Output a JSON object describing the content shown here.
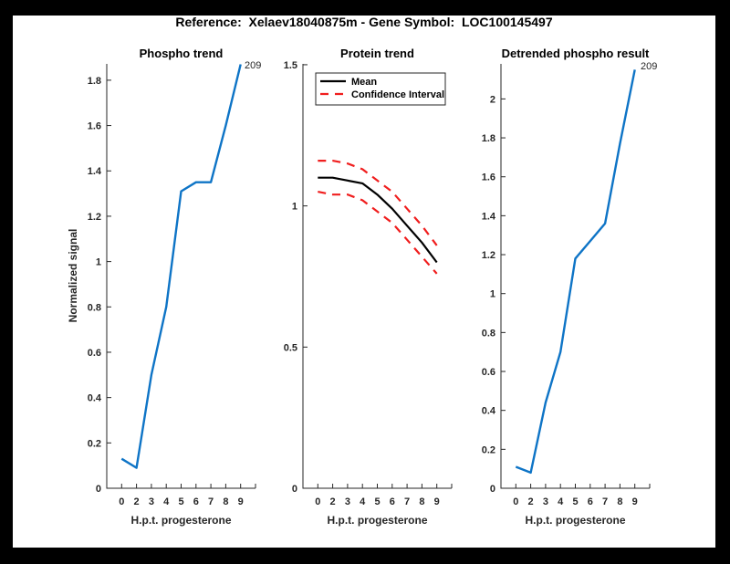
{
  "header": {
    "title": "Reference:  Xelaev18040875m - Gene Symbol:  LOC100145497"
  },
  "colors": {
    "background": "#ffffff",
    "frame": "#000000",
    "axis": "#262626",
    "blue": "#0e74c6",
    "red": "#f01e1e",
    "black": "#000000"
  },
  "x_axis": {
    "label": "H.p.t. progesterone",
    "tick_labels": [
      "0",
      "2",
      "3",
      "4",
      "5",
      "6",
      "7",
      "8",
      "9",
      ""
    ]
  },
  "chart_data": [
    {
      "id": "phospho-trend",
      "type": "line",
      "title": "Phospho trend",
      "ylabel": "Normalized signal",
      "xlabel": "H.p.t. progesterone",
      "categories": [
        0,
        2,
        3,
        4,
        5,
        6,
        7,
        8,
        9
      ],
      "series": [
        {
          "name": "Phospho signal",
          "color_key": "blue",
          "style": "solid",
          "width": 2.4,
          "values": [
            0.13,
            0.09,
            0.5,
            0.8,
            1.31,
            1.35,
            1.35,
            1.6,
            1.87
          ]
        }
      ],
      "annotation": {
        "text": "209"
      },
      "yticks": [
        0,
        0.2,
        0.4,
        0.6,
        0.8,
        1,
        1.2,
        1.4,
        1.6,
        1.8
      ],
      "ytick_labels": [
        "0",
        "0.2",
        "0.4",
        "0.6",
        "0.8",
        "1",
        "1.2",
        "1.4",
        "1.6",
        "1.8"
      ],
      "ylim": [
        0,
        1.872
      ],
      "grid": false,
      "legend": null
    },
    {
      "id": "protein-trend",
      "type": "line",
      "title": "Protein trend",
      "ylabel": "",
      "xlabel": "H.p.t. progesterone",
      "categories": [
        0,
        2,
        3,
        4,
        5,
        6,
        7,
        8,
        9
      ],
      "series": [
        {
          "name": "Mean",
          "color_key": "black",
          "style": "solid",
          "width": 2.2,
          "values": [
            1.1,
            1.1,
            1.09,
            1.08,
            1.04,
            0.99,
            0.93,
            0.87,
            0.8
          ]
        },
        {
          "name": "Confidence Interval upper",
          "color_key": "red",
          "style": "dashed",
          "width": 2.2,
          "values": [
            1.16,
            1.16,
            1.15,
            1.13,
            1.09,
            1.05,
            0.99,
            0.93,
            0.86
          ]
        },
        {
          "name": "Confidence Interval lower",
          "color_key": "red",
          "style": "dashed",
          "width": 2.2,
          "values": [
            1.05,
            1.04,
            1.04,
            1.02,
            0.98,
            0.94,
            0.88,
            0.82,
            0.76
          ]
        }
      ],
      "annotation": null,
      "yticks": [
        0,
        0.5,
        1,
        1.5
      ],
      "ytick_labels": [
        "0",
        "0.5",
        "1",
        "1.5"
      ],
      "ylim": [
        0,
        1.503
      ],
      "grid": false,
      "legend": {
        "position": "top-left",
        "entries": [
          {
            "label": "Mean",
            "style": "solid",
            "color_key": "black"
          },
          {
            "label": "Confidence Interval",
            "style": "dashed",
            "color_key": "red"
          }
        ]
      }
    },
    {
      "id": "detrended-phospho",
      "type": "line",
      "title": "Detrended phospho result",
      "ylabel": "",
      "xlabel": "H.p.t. progesterone",
      "categories": [
        0,
        2,
        3,
        4,
        5,
        6,
        7,
        8,
        9
      ],
      "series": [
        {
          "name": "Detrended phospho signal",
          "color_key": "blue",
          "style": "solid",
          "width": 2.4,
          "values": [
            0.11,
            0.08,
            0.44,
            0.7,
            1.18,
            1.27,
            1.36,
            1.77,
            2.15
          ]
        }
      ],
      "annotation": {
        "text": "209"
      },
      "yticks": [
        0,
        0.2,
        0.4,
        0.6,
        0.8,
        1,
        1.2,
        1.4,
        1.6,
        1.8,
        2
      ],
      "ytick_labels": [
        "0",
        "0.2",
        "0.4",
        "0.6",
        "0.8",
        "1",
        "1.2",
        "1.4",
        "1.6",
        "1.8",
        "2"
      ],
      "ylim": [
        0,
        2.18
      ],
      "grid": false,
      "legend": null
    }
  ]
}
